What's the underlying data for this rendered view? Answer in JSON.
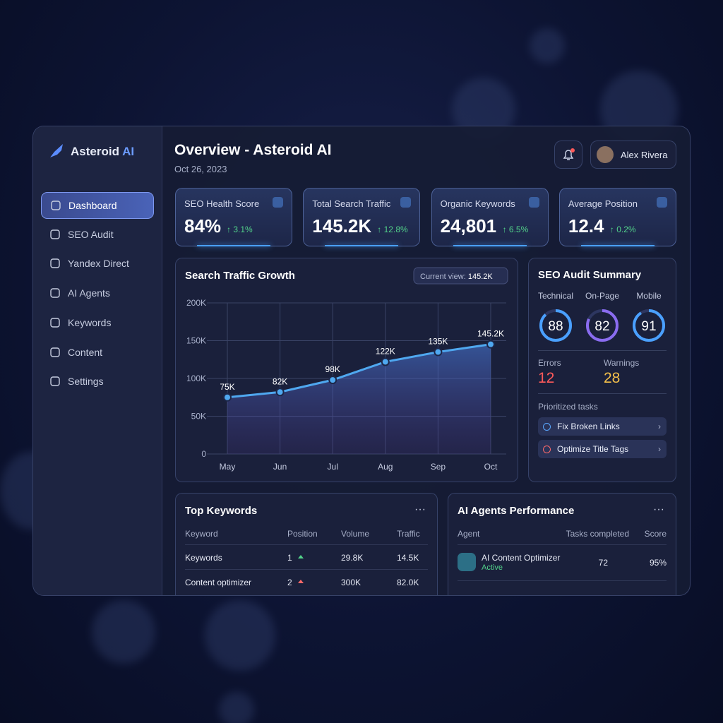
{
  "brand": {
    "name": "Asteroid",
    "accent": "AI"
  },
  "nav": [
    "Dashboard",
    "SEO Audit",
    "Yandex Direct",
    "AI Agents",
    "Keywords",
    "Content",
    "Settings"
  ],
  "header": {
    "title": "Overview - Asteroid AI",
    "date": "Oct 26, 2023",
    "user": "Alex Rivera"
  },
  "kpis": [
    {
      "label": "SEO Health Score",
      "value": "84%",
      "change": "↑ 3.1%"
    },
    {
      "label": "Total Search Traffic",
      "value": "145.2K",
      "change": "↑ 12.8%"
    },
    {
      "label": "Organic Keywords",
      "value": "24,801",
      "change": "↑ 6.5%"
    },
    {
      "label": "Average Position",
      "value": "12.4",
      "change": "↑ 0.2%"
    }
  ],
  "chart_data": {
    "type": "line",
    "title": "Search Traffic Growth",
    "view_label": "Current view:",
    "view_value": "145.2K",
    "categories": [
      "May",
      "Jun",
      "Jul",
      "Aug",
      "Sep",
      "Oct"
    ],
    "values": [
      75000,
      82000,
      98000,
      122000,
      135000,
      145200
    ],
    "value_labels": [
      "75K",
      "82K",
      "98K",
      "122K",
      "135K",
      "145.2K"
    ],
    "color": "#4fa8f0",
    "ylim": [
      0,
      200000
    ],
    "yticks": [
      0,
      {
        "value": 50000,
        "label": "50K"
      },
      {
        "value": 100000,
        "label": "100K"
      },
      {
        "value": 150000,
        "label": "150K"
      },
      {
        "value": 200000,
        "label": "200K"
      }
    ],
    "grid": true
  },
  "audit": {
    "title": "SEO Audit Summary",
    "scores": [
      {
        "label": "Technical",
        "value": 88
      },
      {
        "label": "On-Page",
        "value": 82
      },
      {
        "label": "Mobile",
        "value": 91
      }
    ],
    "errors": {
      "label": "Errors",
      "value": 12
    },
    "warnings": {
      "label": "Warnings",
      "value": 28
    },
    "tasks_title": "Prioritized tasks",
    "tasks": [
      "Fix Broken Links",
      "Optimize Title Tags"
    ]
  },
  "keywords": {
    "title": "Top Keywords",
    "columns": [
      "Keyword",
      "Position",
      "Volume",
      "Traffic"
    ],
    "rows": [
      [
        "Keywords",
        1,
        "29.8K",
        "14.5K"
      ],
      [
        "Content optimizer",
        2,
        "300K",
        "82.0K"
      ]
    ]
  },
  "agents": {
    "title": "AI Agents Performance",
    "columns": [
      "Agent",
      "Tasks completed",
      "Score"
    ],
    "rows": [
      {
        "name": "AI Content Optimizer",
        "status": "Active",
        "tasks": 72,
        "score": "95%"
      }
    ]
  }
}
